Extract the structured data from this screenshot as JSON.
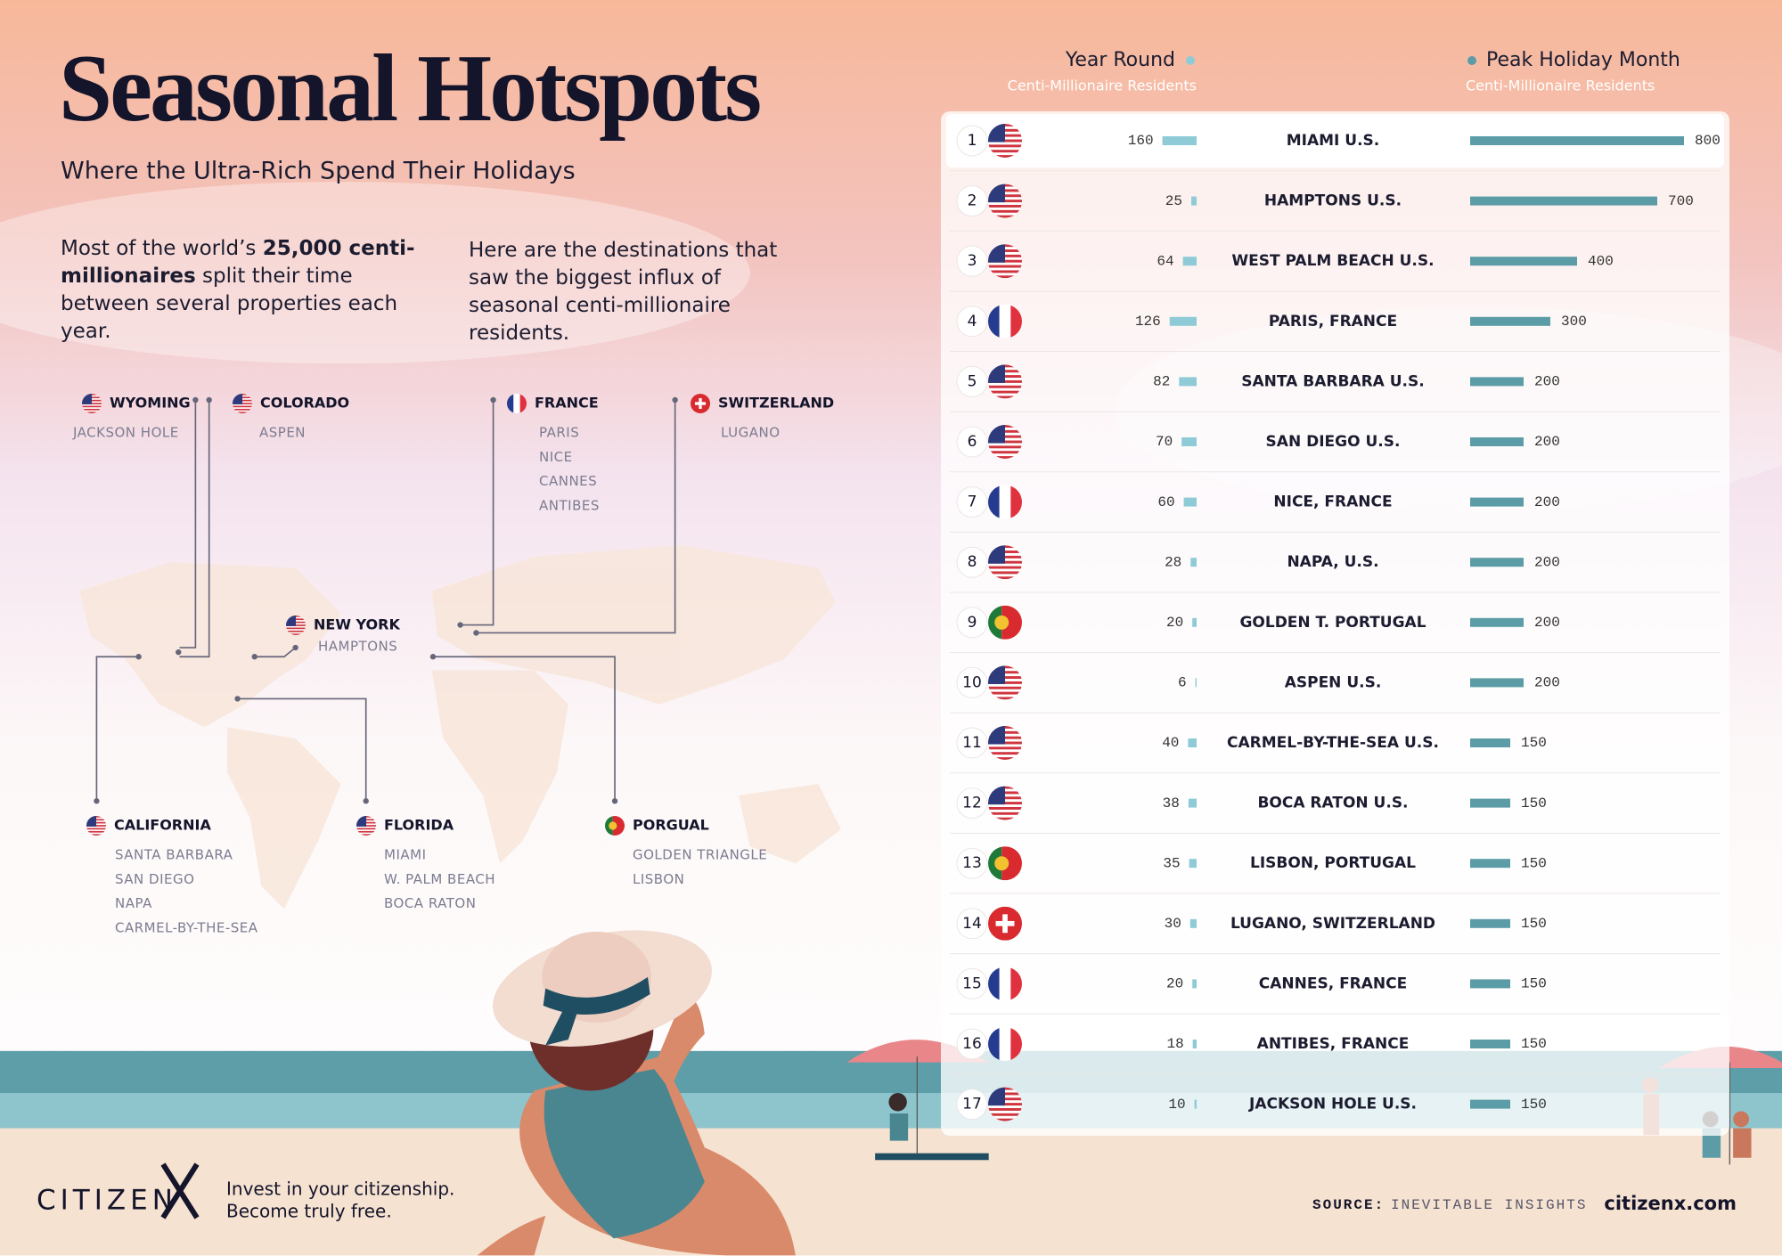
{
  "header": {
    "title": "Seasonal Hotspots",
    "subtitle": "Where the Ultra-Rich Spend Their Holidays"
  },
  "intro_left": [
    {
      "text": "Most of the world’s ",
      "bold": false
    },
    {
      "text": "25,000 centi-millionaires",
      "bold": true
    },
    {
      "text": " split their time between several properties each year.",
      "bold": false
    }
  ],
  "intro_right": "Here are the destinations that saw the biggest influx of seasonal centi-millionaire residents.",
  "map": {
    "regions": [
      {
        "name": "WYOMING",
        "flag": "us",
        "places": [
          "JACKSON HOLE"
        ]
      },
      {
        "name": "COLORADO",
        "flag": "us",
        "places": [
          "ASPEN"
        ]
      },
      {
        "name": "FRANCE",
        "flag": "fr",
        "places": [
          "PARIS",
          "NICE",
          "CANNES",
          "ANTIBES"
        ]
      },
      {
        "name": "SWITZERLAND",
        "flag": "ch",
        "places": [
          "LUGANO"
        ]
      },
      {
        "name": "NEW YORK",
        "flag": "us",
        "places": [
          "HAMPTONS"
        ]
      },
      {
        "name": "CALIFORNIA",
        "flag": "us",
        "places": [
          "SANTA BARBARA",
          "SAN DIEGO",
          "NAPA",
          "CARMEL-BY-THE-SEA"
        ]
      },
      {
        "name": "FLORIDA",
        "flag": "us",
        "places": [
          "MIAMI",
          "W. PALM BEACH",
          "BOCA RATON"
        ]
      },
      {
        "name": "PORGUAL",
        "flag": "pt",
        "places": [
          "GOLDEN TRIANGLE",
          "LISBON"
        ]
      }
    ]
  },
  "columns": {
    "year_round": {
      "title": "Year Round",
      "subtitle": "Centi-Millionaire Residents",
      "color": "#8ecbd6"
    },
    "peak": {
      "title": "Peak Holiday Month",
      "subtitle": "Centi-Millionaire Residents",
      "color": "#5b9ca6"
    }
  },
  "rows": [
    {
      "rank": 1,
      "flag": "us",
      "city": "MIAMI U.S.",
      "year_round": 160,
      "peak": 800
    },
    {
      "rank": 2,
      "flag": "us",
      "city": "HAMPTONS U.S.",
      "year_round": 25,
      "peak": 700
    },
    {
      "rank": 3,
      "flag": "us",
      "city": "WEST PALM BEACH U.S.",
      "year_round": 64,
      "peak": 400
    },
    {
      "rank": 4,
      "flag": "fr",
      "city": "PARIS, FRANCE",
      "year_round": 126,
      "peak": 300
    },
    {
      "rank": 5,
      "flag": "us",
      "city": "SANTA BARBARA U.S.",
      "year_round": 82,
      "peak": 200
    },
    {
      "rank": 6,
      "flag": "us",
      "city": "SAN DIEGO U.S.",
      "year_round": 70,
      "peak": 200
    },
    {
      "rank": 7,
      "flag": "fr",
      "city": "NICE, FRANCE",
      "year_round": 60,
      "peak": 200
    },
    {
      "rank": 8,
      "flag": "us",
      "city": "NAPA, U.S.",
      "year_round": 28,
      "peak": 200
    },
    {
      "rank": 9,
      "flag": "pt",
      "city": "GOLDEN T. PORTUGAL",
      "year_round": 20,
      "peak": 200
    },
    {
      "rank": 10,
      "flag": "us",
      "city": "ASPEN U.S.",
      "year_round": 6,
      "peak": 200
    },
    {
      "rank": 11,
      "flag": "us",
      "city": "CARMEL-BY-THE-SEA U.S.",
      "year_round": 40,
      "peak": 150
    },
    {
      "rank": 12,
      "flag": "us",
      "city": "BOCA RATON U.S.",
      "year_round": 38,
      "peak": 150
    },
    {
      "rank": 13,
      "flag": "pt",
      "city": "LISBON, PORTUGAL",
      "year_round": 35,
      "peak": 150
    },
    {
      "rank": 14,
      "flag": "ch",
      "city": "LUGANO, SWITZERLAND",
      "year_round": 30,
      "peak": 150
    },
    {
      "rank": 15,
      "flag": "fr",
      "city": "CANNES, FRANCE",
      "year_round": 20,
      "peak": 150
    },
    {
      "rank": 16,
      "flag": "fr",
      "city": "ANTIBES, FRANCE",
      "year_round": 18,
      "peak": 150
    },
    {
      "rank": 17,
      "flag": "us",
      "city": "JACKSON HOLE U.S.",
      "year_round": 10,
      "peak": 150
    }
  ],
  "footer": {
    "brand": "CITIZEN",
    "tagline": [
      "Invest in your citizenship.",
      "Become truly free."
    ],
    "source_label": "SOURCE:",
    "source": "INEVITABLE INSIGHTS",
    "url": "citizenx.com"
  }
}
